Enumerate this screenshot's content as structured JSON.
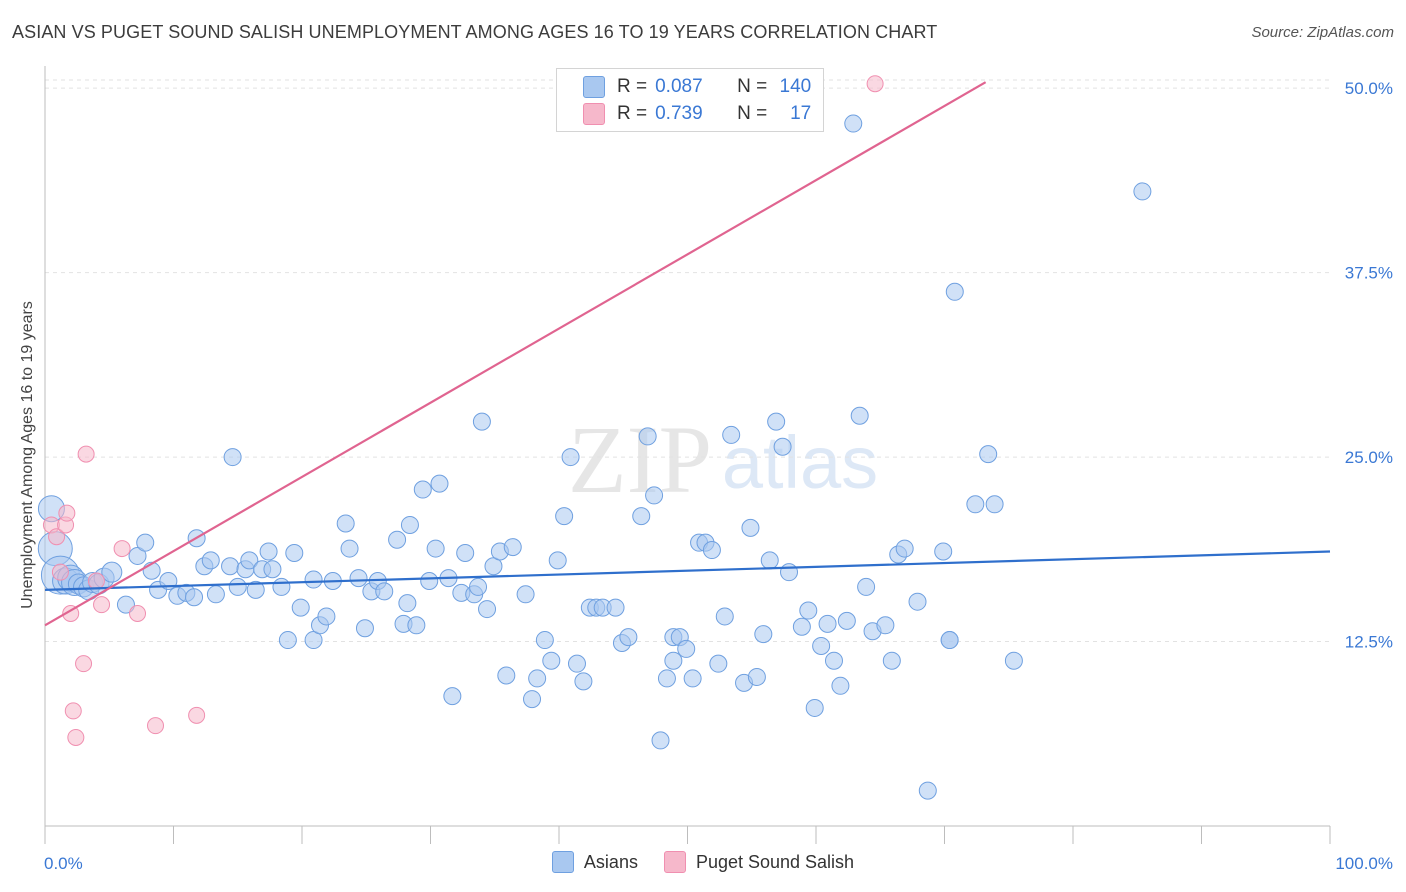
{
  "title": "ASIAN VS PUGET SOUND SALISH UNEMPLOYMENT AMONG AGES 16 TO 19 YEARS CORRELATION CHART",
  "source": "Source: ZipAtlas.com",
  "watermark": {
    "zip": "ZIP",
    "atlas": "atlas"
  },
  "stats": {
    "asians": {
      "r_label": "R =",
      "r": "0.087",
      "n_label": "N =",
      "n": "140",
      "color": "#a9c8f0"
    },
    "salish": {
      "r_label": "R =",
      "r": "0.739",
      "n_label": "N =",
      "n": "17",
      "color": "#f6b8cb"
    }
  },
  "legend": {
    "asians": "Asians",
    "salish": "Puget Sound Salish"
  },
  "chart_data": {
    "type": "scatter",
    "xlabel": "",
    "ylabel": "Unemployment Among Ages 16 to 19 years",
    "xlim": [
      0,
      100
    ],
    "ylim": [
      0,
      51.5
    ],
    "x_tick_labels": [
      "0.0%",
      "100.0%"
    ],
    "y_ticks": [
      12.5,
      25.0,
      37.5,
      50.0
    ],
    "y_tick_labels": [
      "12.5%",
      "25.0%",
      "37.5%",
      "50.0%"
    ],
    "grid": "horizontal dashed",
    "legend_position": "bottom",
    "series": [
      {
        "name": "Asians",
        "color": "#6fa0e0",
        "trend": {
          "x0": 0,
          "y0": 16.0,
          "x1": 100,
          "y1": 18.6,
          "color": "#2f6fcc"
        },
        "points": [
          [
            0.5,
            21.5
          ],
          [
            0.8,
            18.8
          ],
          [
            1.2,
            17.0
          ],
          [
            1.6,
            16.6
          ],
          [
            2.0,
            16.8
          ],
          [
            2.3,
            16.5
          ],
          [
            2.6,
            16.4
          ],
          [
            3.0,
            16.2
          ],
          [
            3.4,
            16.0
          ],
          [
            3.7,
            16.5
          ],
          [
            4.2,
            16.4
          ],
          [
            4.6,
            16.8
          ],
          [
            5.2,
            17.2
          ],
          [
            6.3,
            15.0
          ],
          [
            7.2,
            18.3
          ],
          [
            7.8,
            19.2
          ],
          [
            8.3,
            17.3
          ],
          [
            8.8,
            16.0
          ],
          [
            9.6,
            16.6
          ],
          [
            10.3,
            15.6
          ],
          [
            11.0,
            15.8
          ],
          [
            11.6,
            15.5
          ],
          [
            11.8,
            19.5
          ],
          [
            12.4,
            17.6
          ],
          [
            12.9,
            18.0
          ],
          [
            13.3,
            15.7
          ],
          [
            14.4,
            17.6
          ],
          [
            14.6,
            25.0
          ],
          [
            15.0,
            16.2
          ],
          [
            15.6,
            17.4
          ],
          [
            15.9,
            18.0
          ],
          [
            16.4,
            16.0
          ],
          [
            16.9,
            17.4
          ],
          [
            17.4,
            18.6
          ],
          [
            17.7,
            17.4
          ],
          [
            18.4,
            16.2
          ],
          [
            18.9,
            12.6
          ],
          [
            19.4,
            18.5
          ],
          [
            19.9,
            14.8
          ],
          [
            20.9,
            16.7
          ],
          [
            20.9,
            12.6
          ],
          [
            21.4,
            13.6
          ],
          [
            21.9,
            14.2
          ],
          [
            22.4,
            16.6
          ],
          [
            23.4,
            20.5
          ],
          [
            23.7,
            18.8
          ],
          [
            24.4,
            16.8
          ],
          [
            24.9,
            13.4
          ],
          [
            25.4,
            15.9
          ],
          [
            25.9,
            16.6
          ],
          [
            26.4,
            15.9
          ],
          [
            27.4,
            19.4
          ],
          [
            27.9,
            13.7
          ],
          [
            28.2,
            15.1
          ],
          [
            28.4,
            20.4
          ],
          [
            28.9,
            13.6
          ],
          [
            29.4,
            22.8
          ],
          [
            29.9,
            16.6
          ],
          [
            30.4,
            18.8
          ],
          [
            30.7,
            23.2
          ],
          [
            31.4,
            16.8
          ],
          [
            31.7,
            8.8
          ],
          [
            32.4,
            15.8
          ],
          [
            32.7,
            18.5
          ],
          [
            33.4,
            15.7
          ],
          [
            33.7,
            16.2
          ],
          [
            34.0,
            27.4
          ],
          [
            34.4,
            14.7
          ],
          [
            34.9,
            17.6
          ],
          [
            35.4,
            18.6
          ],
          [
            35.9,
            10.2
          ],
          [
            36.4,
            18.9
          ],
          [
            37.4,
            15.7
          ],
          [
            37.9,
            8.6
          ],
          [
            38.3,
            10.0
          ],
          [
            38.9,
            12.6
          ],
          [
            39.4,
            11.2
          ],
          [
            39.9,
            18.0
          ],
          [
            40.4,
            21.0
          ],
          [
            40.9,
            25.0
          ],
          [
            41.4,
            11.0
          ],
          [
            41.9,
            9.8
          ],
          [
            42.4,
            14.8
          ],
          [
            42.9,
            14.8
          ],
          [
            43.4,
            14.8
          ],
          [
            44.4,
            14.8
          ],
          [
            44.9,
            12.4
          ],
          [
            45.4,
            12.8
          ],
          [
            46.4,
            21.0
          ],
          [
            46.9,
            26.4
          ],
          [
            47.4,
            22.4
          ],
          [
            47.9,
            5.8
          ],
          [
            48.4,
            10.0
          ],
          [
            48.9,
            11.2
          ],
          [
            48.9,
            12.8
          ],
          [
            49.4,
            12.8
          ],
          [
            49.9,
            12.0
          ],
          [
            50.4,
            10.0
          ],
          [
            50.9,
            19.2
          ],
          [
            51.4,
            19.2
          ],
          [
            51.9,
            18.7
          ],
          [
            52.4,
            11.0
          ],
          [
            52.9,
            14.2
          ],
          [
            53.4,
            26.5
          ],
          [
            54.4,
            9.7
          ],
          [
            54.9,
            20.2
          ],
          [
            55.4,
            10.1
          ],
          [
            55.9,
            13.0
          ],
          [
            56.4,
            18.0
          ],
          [
            56.9,
            27.4
          ],
          [
            57.4,
            25.7
          ],
          [
            57.9,
            17.2
          ],
          [
            58.9,
            13.5
          ],
          [
            59.4,
            14.6
          ],
          [
            59.9,
            8.0
          ],
          [
            60.4,
            12.2
          ],
          [
            60.9,
            13.7
          ],
          [
            61.4,
            11.2
          ],
          [
            61.9,
            9.5
          ],
          [
            62.4,
            13.9
          ],
          [
            62.9,
            47.6
          ],
          [
            63.4,
            27.8
          ],
          [
            63.9,
            16.2
          ],
          [
            64.4,
            13.2
          ],
          [
            65.4,
            13.6
          ],
          [
            65.9,
            11.2
          ],
          [
            66.4,
            18.4
          ],
          [
            66.9,
            18.8
          ],
          [
            67.9,
            15.2
          ],
          [
            69.9,
            18.6
          ],
          [
            70.4,
            12.6
          ],
          [
            70.8,
            36.2
          ],
          [
            68.7,
            2.4
          ],
          [
            73.4,
            25.2
          ],
          [
            72.4,
            21.8
          ],
          [
            73.9,
            21.8
          ],
          [
            75.4,
            11.2
          ],
          [
            85.4,
            43.0
          ],
          [
            56.9,
            49.2
          ],
          [
            70.4,
            12.6
          ]
        ]
      },
      {
        "name": "Puget Sound Salish",
        "color": "#f08fb0",
        "trend": {
          "x0": 0,
          "y0": 13.6,
          "x1": 73.2,
          "y1": 50.4,
          "color": "#e06490"
        },
        "points": [
          [
            0.5,
            20.4
          ],
          [
            0.9,
            19.6
          ],
          [
            1.2,
            17.2
          ],
          [
            1.6,
            20.4
          ],
          [
            1.7,
            21.2
          ],
          [
            2.0,
            14.4
          ],
          [
            2.2,
            7.8
          ],
          [
            2.4,
            6.0
          ],
          [
            3.0,
            11.0
          ],
          [
            3.2,
            25.2
          ],
          [
            4.4,
            15.0
          ],
          [
            6.0,
            18.8
          ],
          [
            7.2,
            14.4
          ],
          [
            8.6,
            6.8
          ],
          [
            11.8,
            7.5
          ],
          [
            64.6,
            50.3
          ],
          [
            4.0,
            16.6
          ]
        ]
      }
    ]
  }
}
